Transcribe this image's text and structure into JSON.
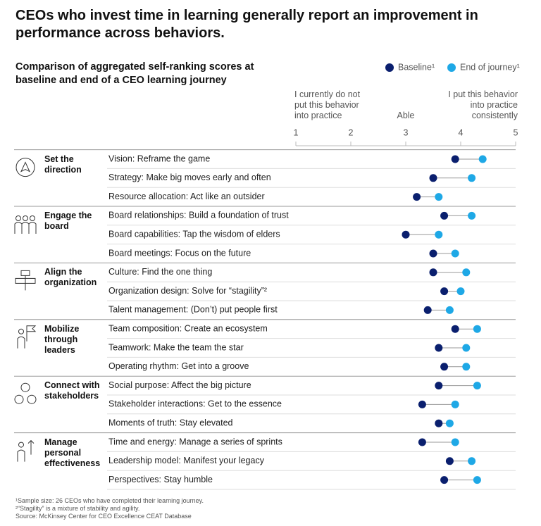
{
  "chart_data": {
    "type": "dumbbell",
    "title": "CEOs who invest time in learning generally report an improvement in performance across behaviors.",
    "subtitle": "Comparison of aggregated self-ranking scores at baseline and end of a CEO learning journey",
    "axis_annotations": [
      "I currently do not put this behavior into practice",
      "Able",
      "I put this behavior into practice consistently"
    ],
    "xlim": [
      1,
      5
    ],
    "xticks": [
      1,
      2,
      3,
      4,
      5
    ],
    "groups": [
      {
        "name": "Set the direction",
        "categories": [
          "Vision: Reframe the game",
          "Strategy: Make big moves early and often",
          "Resource allocation: Act like an outsider"
        ]
      },
      {
        "name": "Engage the board",
        "categories": [
          "Board relationships: Build a foundation of trust",
          "Board capabilities: Tap the wisdom of elders",
          "Board meetings: Focus on the future"
        ]
      },
      {
        "name": "Align the organization",
        "categories": [
          "Culture: Find the one thing",
          "Organization design: Solve for “stagility”²",
          "Talent management: (Don’t) put people first"
        ]
      },
      {
        "name": "Mobilize through leaders",
        "categories": [
          "Team composition: Create an ecosystem",
          "Teamwork: Make the team the star",
          "Operating rhythm: Get into a groove"
        ]
      },
      {
        "name": "Connect with stakeholders",
        "categories": [
          "Social purpose: Affect the big picture",
          "Stakeholder interactions: Get to the essence",
          "Moments of truth: Stay elevated"
        ]
      },
      {
        "name": "Manage personal effectiveness",
        "categories": [
          "Time and energy: Manage a series of sprints",
          "Leadership model: Manifest your legacy",
          "Perspectives: Stay humble"
        ]
      }
    ],
    "series": [
      {
        "name": "Baseline¹",
        "color": "#0a1f6e",
        "values": [
          3.9,
          3.5,
          3.2,
          3.7,
          3.0,
          3.5,
          3.5,
          3.7,
          3.4,
          3.9,
          3.6,
          3.7,
          3.6,
          3.3,
          3.6,
          3.3,
          3.8,
          3.7
        ]
      },
      {
        "name": "End of journey¹",
        "color": "#1ea8e6",
        "values": [
          4.4,
          4.2,
          3.6,
          4.2,
          3.6,
          3.9,
          4.1,
          4.0,
          3.8,
          4.3,
          4.1,
          4.1,
          4.3,
          3.9,
          3.8,
          3.9,
          4.2,
          4.3
        ]
      }
    ],
    "notes": [
      "¹Sample size: 26 CEOs who have completed their learning journey.",
      "²“Stagility” is a mixture of stability and agility.",
      "Source: McKinsey Center for CEO Excellence CEAT Database"
    ]
  }
}
